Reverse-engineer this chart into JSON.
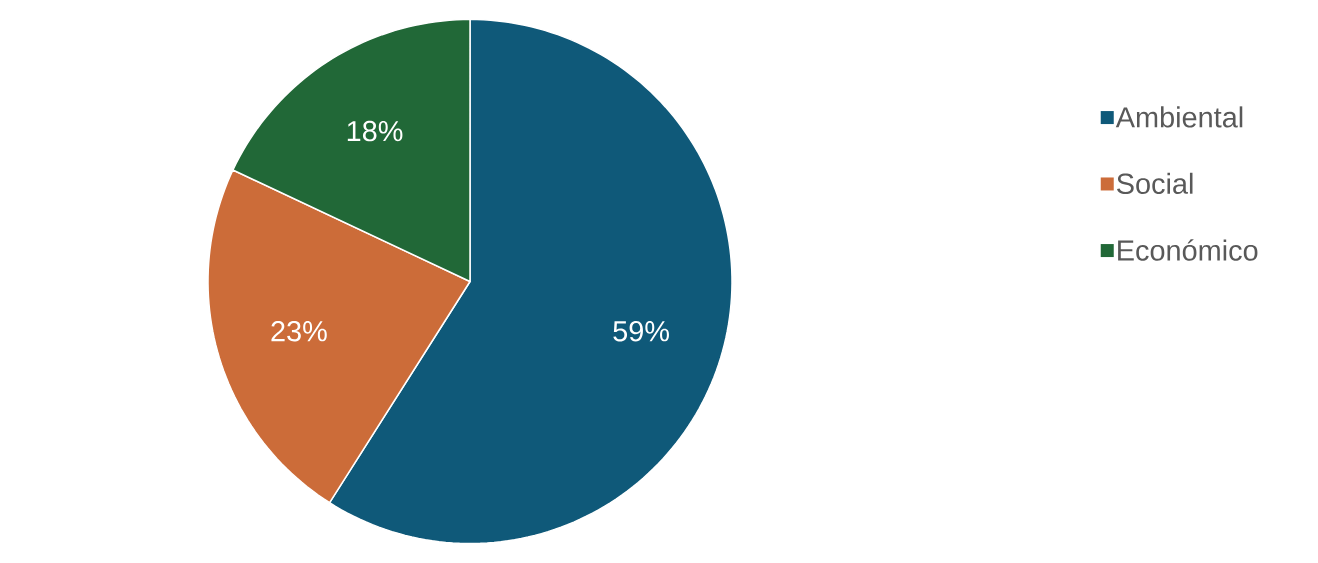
{
  "chart_data": {
    "type": "pie",
    "categories": [
      "Ambiental",
      "Social",
      "Económico"
    ],
    "values": [
      59,
      23,
      18
    ],
    "colors": [
      "#0f5979",
      "#cc6c39",
      "#216837"
    ],
    "value_labels": [
      "59%",
      "23%",
      "18%"
    ],
    "legend": "right"
  }
}
